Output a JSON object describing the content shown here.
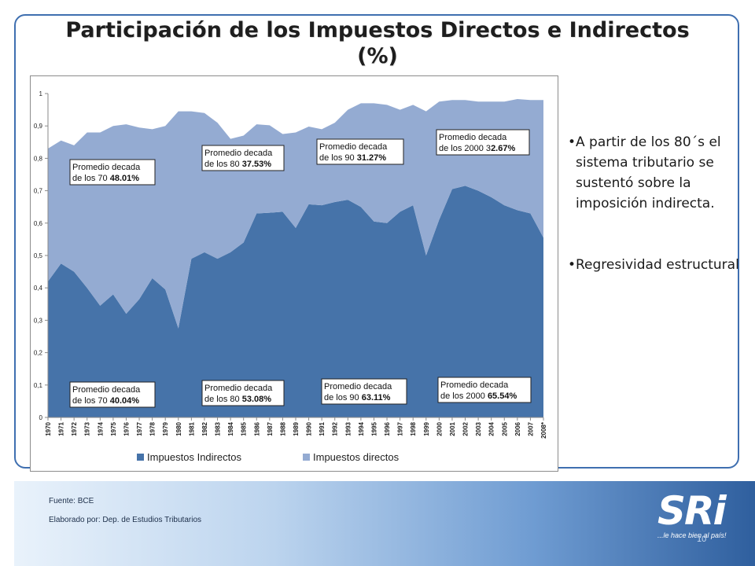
{
  "slide": {
    "title_line1": "Participación de los Impuestos Directos e Indirectos",
    "title_line2": "(%)",
    "bullets": [
      "A partir de los 80´s el sistema tributario se sustentó sobre la imposición indirecta.",
      "Regresividad estructural"
    ],
    "footer": {
      "source": "Fuente: BCE",
      "author": "Elaborado por: Dep. de Estudios Tributarios"
    },
    "logo_text": "SRi",
    "logo_slogan": "...le hace bien al país!",
    "page_number": "10"
  },
  "chart_data": {
    "type": "area",
    "stacked": true,
    "x": [
      "1970",
      "1971",
      "1972",
      "1973",
      "1974",
      "1975",
      "1976",
      "1977",
      "1978",
      "1979",
      "1980",
      "1981",
      "1982",
      "1983",
      "1984",
      "1985",
      "1986",
      "1987",
      "1988",
      "1989",
      "1990",
      "1991",
      "1992",
      "1993",
      "1994",
      "1995",
      "1996",
      "1997",
      "1998",
      "1999",
      "2000",
      "2001",
      "2002",
      "2003",
      "2004",
      "2005",
      "2006",
      "2007",
      "2008*"
    ],
    "ylim": [
      0,
      1
    ],
    "yticks": [
      "0",
      "0,1",
      "0,2",
      "0,3",
      "0,4",
      "0,5",
      "0,6",
      "0,7",
      "0,8",
      "0,9",
      "1"
    ],
    "series": [
      {
        "name": "Impuestos Indirectos",
        "color": "#4673a9",
        "values": [
          0.42,
          0.475,
          0.45,
          0.4,
          0.345,
          0.38,
          0.32,
          0.365,
          0.43,
          0.395,
          0.275,
          0.49,
          0.51,
          0.49,
          0.51,
          0.54,
          0.63,
          0.632,
          0.635,
          0.585,
          0.658,
          0.655,
          0.665,
          0.672,
          0.65,
          0.605,
          0.6,
          0.635,
          0.655,
          0.5,
          0.61,
          0.705,
          0.715,
          0.7,
          0.68,
          0.655,
          0.64,
          0.63,
          0.555
        ]
      },
      {
        "name": "Impuestos directos",
        "color": "#94abd2",
        "values": [
          0.41,
          0.38,
          0.39,
          0.48,
          0.535,
          0.52,
          0.585,
          0.53,
          0.46,
          0.505,
          0.67,
          0.455,
          0.43,
          0.42,
          0.35,
          0.33,
          0.275,
          0.27,
          0.24,
          0.295,
          0.24,
          0.235,
          0.245,
          0.278,
          0.32,
          0.365,
          0.365,
          0.315,
          0.31,
          0.445,
          0.365,
          0.275,
          0.265,
          0.275,
          0.295,
          0.32,
          0.343,
          0.35,
          0.425
        ]
      }
    ],
    "legend_position": "bottom",
    "annotations": [
      {
        "line1": "Promedio decada",
        "line2": "de los 70 ",
        "value": "48.01%"
      },
      {
        "line1": "Promedio decada",
        "line2": "de los 80 ",
        "value": "37.53%"
      },
      {
        "line1": "Promedio decada",
        "line2": "de los 90 ",
        "value": "31.27%"
      },
      {
        "line1": "Promedio decada",
        "line2": "de los 2000 3",
        "value": "2.67%"
      },
      {
        "line1": "Promedio decada",
        "line2": "de los 70 ",
        "value": "40.04%"
      },
      {
        "line1": "Promedio decada",
        "line2": "de los 80 ",
        "value": "53.08%"
      },
      {
        "line1": "Promedio decada",
        "line2": "de los 90 ",
        "value": "63.11%"
      },
      {
        "line1": "Promedio decada",
        "line2": "de los 2000 ",
        "value": "65.54%"
      }
    ]
  }
}
